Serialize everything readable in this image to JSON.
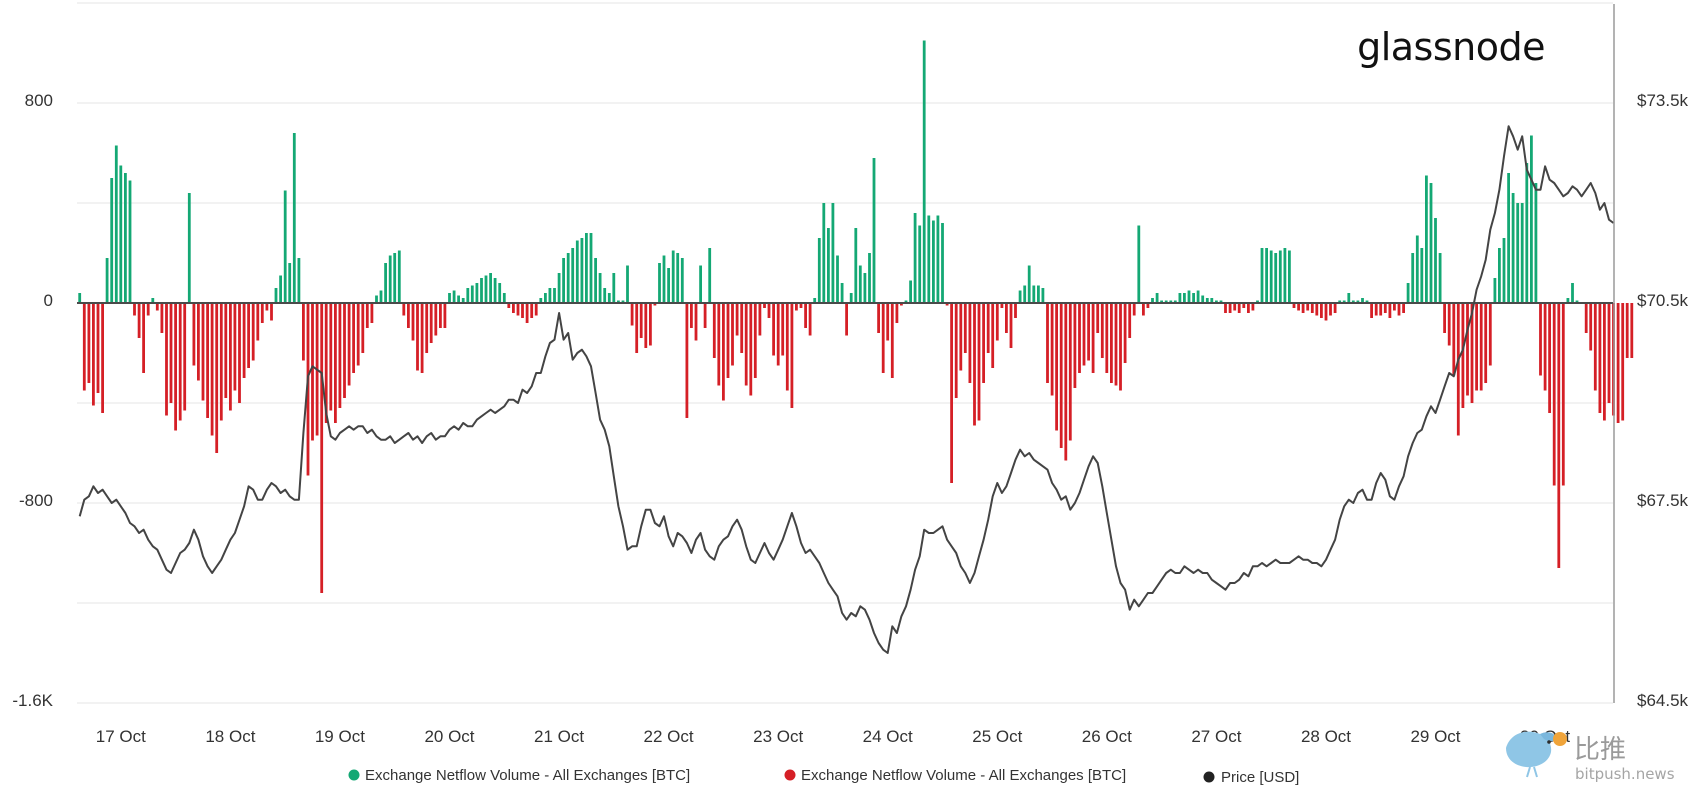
{
  "brand": "glassnode",
  "watermark": {
    "logo": "bird-logo",
    "cn": "比推",
    "url": "bitpush.news"
  },
  "colors": {
    "inflow": "#14a874",
    "outflow": "#d51f26",
    "price": "#444444",
    "zero": "#4a4a4a",
    "grid": "#e6e6e6"
  },
  "chart_data": {
    "type": "bar",
    "title": "",
    "grid": true,
    "legend_position": "bottom",
    "x_tick_labels": [
      "17 Oct",
      "18 Oct",
      "19 Oct",
      "20 Oct",
      "21 Oct",
      "22 Oct",
      "23 Oct",
      "24 Oct",
      "25 Oct",
      "26 Oct",
      "27 Oct",
      "28 Oct",
      "29 Oct",
      "30 Oct"
    ],
    "x_range_days": [
      16.6,
      30.62
    ],
    "y_left": {
      "ticks": [
        "800",
        "0",
        "-800",
        "-1.6K"
      ],
      "tick_values": [
        800,
        0,
        -800,
        -1600
      ],
      "range": [
        -1600,
        1200
      ]
    },
    "y_right": {
      "ticks": [
        "$73.5k",
        "$70.5k",
        "$67.5k",
        "$64.5k"
      ],
      "tick_values": [
        73500,
        70500,
        67500,
        64500
      ],
      "range": [
        64500,
        76500
      ]
    },
    "legend": [
      {
        "label": "Exchange Netflow Volume - All Exchanges [BTC]",
        "color": "#14a874"
      },
      {
        "label": "Exchange Netflow Volume - All Exchanges [BTC]",
        "color": "#d51f26"
      },
      {
        "label": "Price [USD]",
        "color": "#222222"
      }
    ],
    "netflow": {
      "name": "Exchange Netflow Volume - All Exchanges [BTC]",
      "unit": "BTC",
      "interval_hours": 1,
      "start": "2024-10-16 15:00",
      "values": [
        40,
        -350,
        -320,
        -410,
        -360,
        -440,
        180,
        500,
        630,
        550,
        520,
        490,
        -50,
        -140,
        -280,
        -50,
        20,
        -30,
        -120,
        -450,
        -400,
        -510,
        -470,
        -430,
        440,
        -250,
        -310,
        -390,
        -460,
        -530,
        -600,
        -470,
        -380,
        -430,
        -350,
        -400,
        -300,
        -260,
        -230,
        -150,
        -80,
        -30,
        -70,
        60,
        110,
        450,
        160,
        680,
        180,
        -230,
        -690,
        -550,
        -530,
        -1160,
        -480,
        -430,
        -480,
        -420,
        -380,
        -330,
        -280,
        -250,
        -200,
        -100,
        -80,
        30,
        50,
        160,
        190,
        200,
        210,
        -50,
        -100,
        -150,
        -270,
        -280,
        -200,
        -160,
        -130,
        -100,
        -100,
        40,
        50,
        30,
        20,
        60,
        70,
        80,
        100,
        110,
        120,
        100,
        80,
        40,
        -20,
        -40,
        -50,
        -60,
        -80,
        -60,
        -50,
        20,
        40,
        60,
        60,
        120,
        180,
        200,
        220,
        250,
        260,
        280,
        280,
        180,
        120,
        60,
        40,
        120,
        10,
        10,
        150,
        -90,
        -200,
        -140,
        -180,
        -170,
        -10,
        160,
        190,
        140,
        210,
        200,
        180,
        -460,
        -100,
        -150,
        150,
        -100,
        220,
        -220,
        -330,
        -390,
        -300,
        -250,
        -130,
        -200,
        -330,
        -370,
        -300,
        -130,
        -20,
        -60,
        -210,
        -250,
        -210,
        -350,
        -420,
        -30,
        -20,
        -100,
        -130,
        20,
        260,
        400,
        300,
        400,
        190,
        80,
        -130,
        40,
        300,
        150,
        120,
        200,
        580,
        -120,
        -280,
        -150,
        -300,
        -80,
        -10,
        10,
        90,
        360,
        310,
        1050,
        350,
        330,
        350,
        320,
        -10,
        -720,
        -380,
        -270,
        -200,
        -320,
        -490,
        -470,
        -320,
        -200,
        -260,
        -150,
        -20,
        -120,
        -180,
        -60,
        50,
        70,
        150,
        70,
        70,
        60,
        -320,
        -370,
        -510,
        -580,
        -630,
        -550,
        -340,
        -280,
        -250,
        -230,
        -280,
        -120,
        -220,
        -280,
        -320,
        -330,
        -350,
        -240,
        -140,
        -50,
        310,
        -50,
        -20,
        20,
        40,
        10,
        10,
        10,
        10,
        40,
        40,
        50,
        40,
        50,
        30,
        20,
        20,
        10,
        10,
        -40,
        -40,
        -30,
        -40,
        -20,
        -40,
        -30,
        10,
        220,
        220,
        210,
        200,
        210,
        220,
        210,
        -20,
        -30,
        -40,
        -30,
        -40,
        -50,
        -60,
        -70,
        -50,
        -40,
        10,
        10,
        40,
        10,
        10,
        20,
        10,
        -60,
        -50,
        -50,
        -40,
        -60,
        -30,
        -50,
        -40,
        80,
        200,
        270,
        220,
        510,
        480,
        340,
        200,
        -120,
        -170,
        -290,
        -530,
        -420,
        -370,
        -400,
        -350,
        -350,
        -320,
        -250,
        100,
        220,
        260,
        520,
        440,
        400,
        400,
        560,
        670,
        480,
        -290,
        -350,
        -440,
        -730,
        -1060,
        -730,
        20,
        80,
        10,
        0,
        -120,
        -190,
        -350,
        -440,
        -470,
        -400,
        -450,
        -480,
        -470,
        -220,
        -220
      ]
    },
    "price": {
      "name": "Price [USD]",
      "unit": "USD",
      "interval_hours": 1,
      "start": "2024-10-16 15:00",
      "values": [
        67300,
        67550,
        67600,
        67750,
        67650,
        67700,
        67600,
        67500,
        67550,
        67450,
        67350,
        67200,
        67150,
        67050,
        67100,
        66950,
        66850,
        66800,
        66650,
        66500,
        66450,
        66600,
        66750,
        66800,
        66900,
        67100,
        66950,
        66700,
        66550,
        66450,
        66550,
        66650,
        66800,
        66950,
        67050,
        67250,
        67450,
        67750,
        67700,
        67550,
        67550,
        67700,
        67800,
        67750,
        67650,
        67700,
        67600,
        67550,
        67550,
        68550,
        69400,
        69550,
        69500,
        69450,
        68850,
        68500,
        68450,
        68550,
        68600,
        68650,
        68600,
        68650,
        68650,
        68550,
        68600,
        68500,
        68450,
        68450,
        68500,
        68400,
        68450,
        68500,
        68550,
        68450,
        68500,
        68400,
        68500,
        68550,
        68450,
        68500,
        68500,
        68600,
        68650,
        68600,
        68700,
        68650,
        68650,
        68750,
        68800,
        68850,
        68900,
        68850,
        68900,
        68950,
        69050,
        69050,
        69000,
        69200,
        69150,
        69250,
        69450,
        69450,
        69700,
        69900,
        69950,
        70350,
        69950,
        70050,
        69650,
        69750,
        69800,
        69700,
        69550,
        69150,
        68750,
        68600,
        68350,
        67900,
        67450,
        67150,
        66800,
        66850,
        66850,
        67150,
        67400,
        67400,
        67200,
        67150,
        67300,
        67000,
        66850,
        67050,
        67000,
        66900,
        66750,
        66950,
        67050,
        66800,
        66700,
        66650,
        66850,
        66950,
        67000,
        67150,
        67250,
        67100,
        66850,
        66650,
        66600,
        66750,
        66900,
        66750,
        66650,
        66800,
        66950,
        67150,
        67350,
        67150,
        66900,
        66750,
        66800,
        66700,
        66600,
        66450,
        66300,
        66200,
        66100,
        65850,
        65750,
        65850,
        65800,
        65950,
        65900,
        65750,
        65550,
        65400,
        65300,
        65250,
        65650,
        65550,
        65800,
        65950,
        66200,
        66500,
        66700,
        67100,
        67050,
        67050,
        67100,
        67150,
        66950,
        66850,
        66750,
        66550,
        66450,
        66300,
        66450,
        66700,
        66950,
        67250,
        67600,
        67800,
        67650,
        67750,
        67950,
        68150,
        68300,
        68200,
        68250,
        68150,
        68100,
        68050,
        68000,
        67800,
        67700,
        67550,
        67600,
        67400,
        67500,
        67650,
        67850,
        68050,
        68200,
        68100,
        67750,
        67350,
        66950,
        66550,
        66300,
        66200,
        65900,
        66050,
        65950,
        66050,
        66150,
        66150,
        66250,
        66350,
        66450,
        66500,
        66450,
        66450,
        66550,
        66500,
        66450,
        66500,
        66450,
        66450,
        66350,
        66300,
        66250,
        66200,
        66300,
        66300,
        66350,
        66450,
        66400,
        66550,
        66550,
        66600,
        66550,
        66600,
        66650,
        66600,
        66600,
        66600,
        66650,
        66700,
        66650,
        66650,
        66600,
        66600,
        66550,
        66650,
        66800,
        66950,
        67250,
        67450,
        67550,
        67500,
        67650,
        67700,
        67550,
        67550,
        67800,
        67950,
        67850,
        67600,
        67550,
        67750,
        67900,
        68200,
        68400,
        68550,
        68600,
        68800,
        68950,
        68850,
        69050,
        69250,
        69450,
        69400,
        69650,
        69800,
        70100,
        70350,
        70700,
        70900,
        71150,
        71600,
        71850,
        72200,
        72700,
        73150,
        73000,
        72800,
        73000,
        72500,
        72350,
        72200,
        72200,
        72550,
        72350,
        72300,
        72200,
        72100,
        72150,
        72250,
        72200,
        72100,
        72200,
        72300,
        72150,
        71900,
        72000,
        71750,
        71700
      ]
    }
  }
}
